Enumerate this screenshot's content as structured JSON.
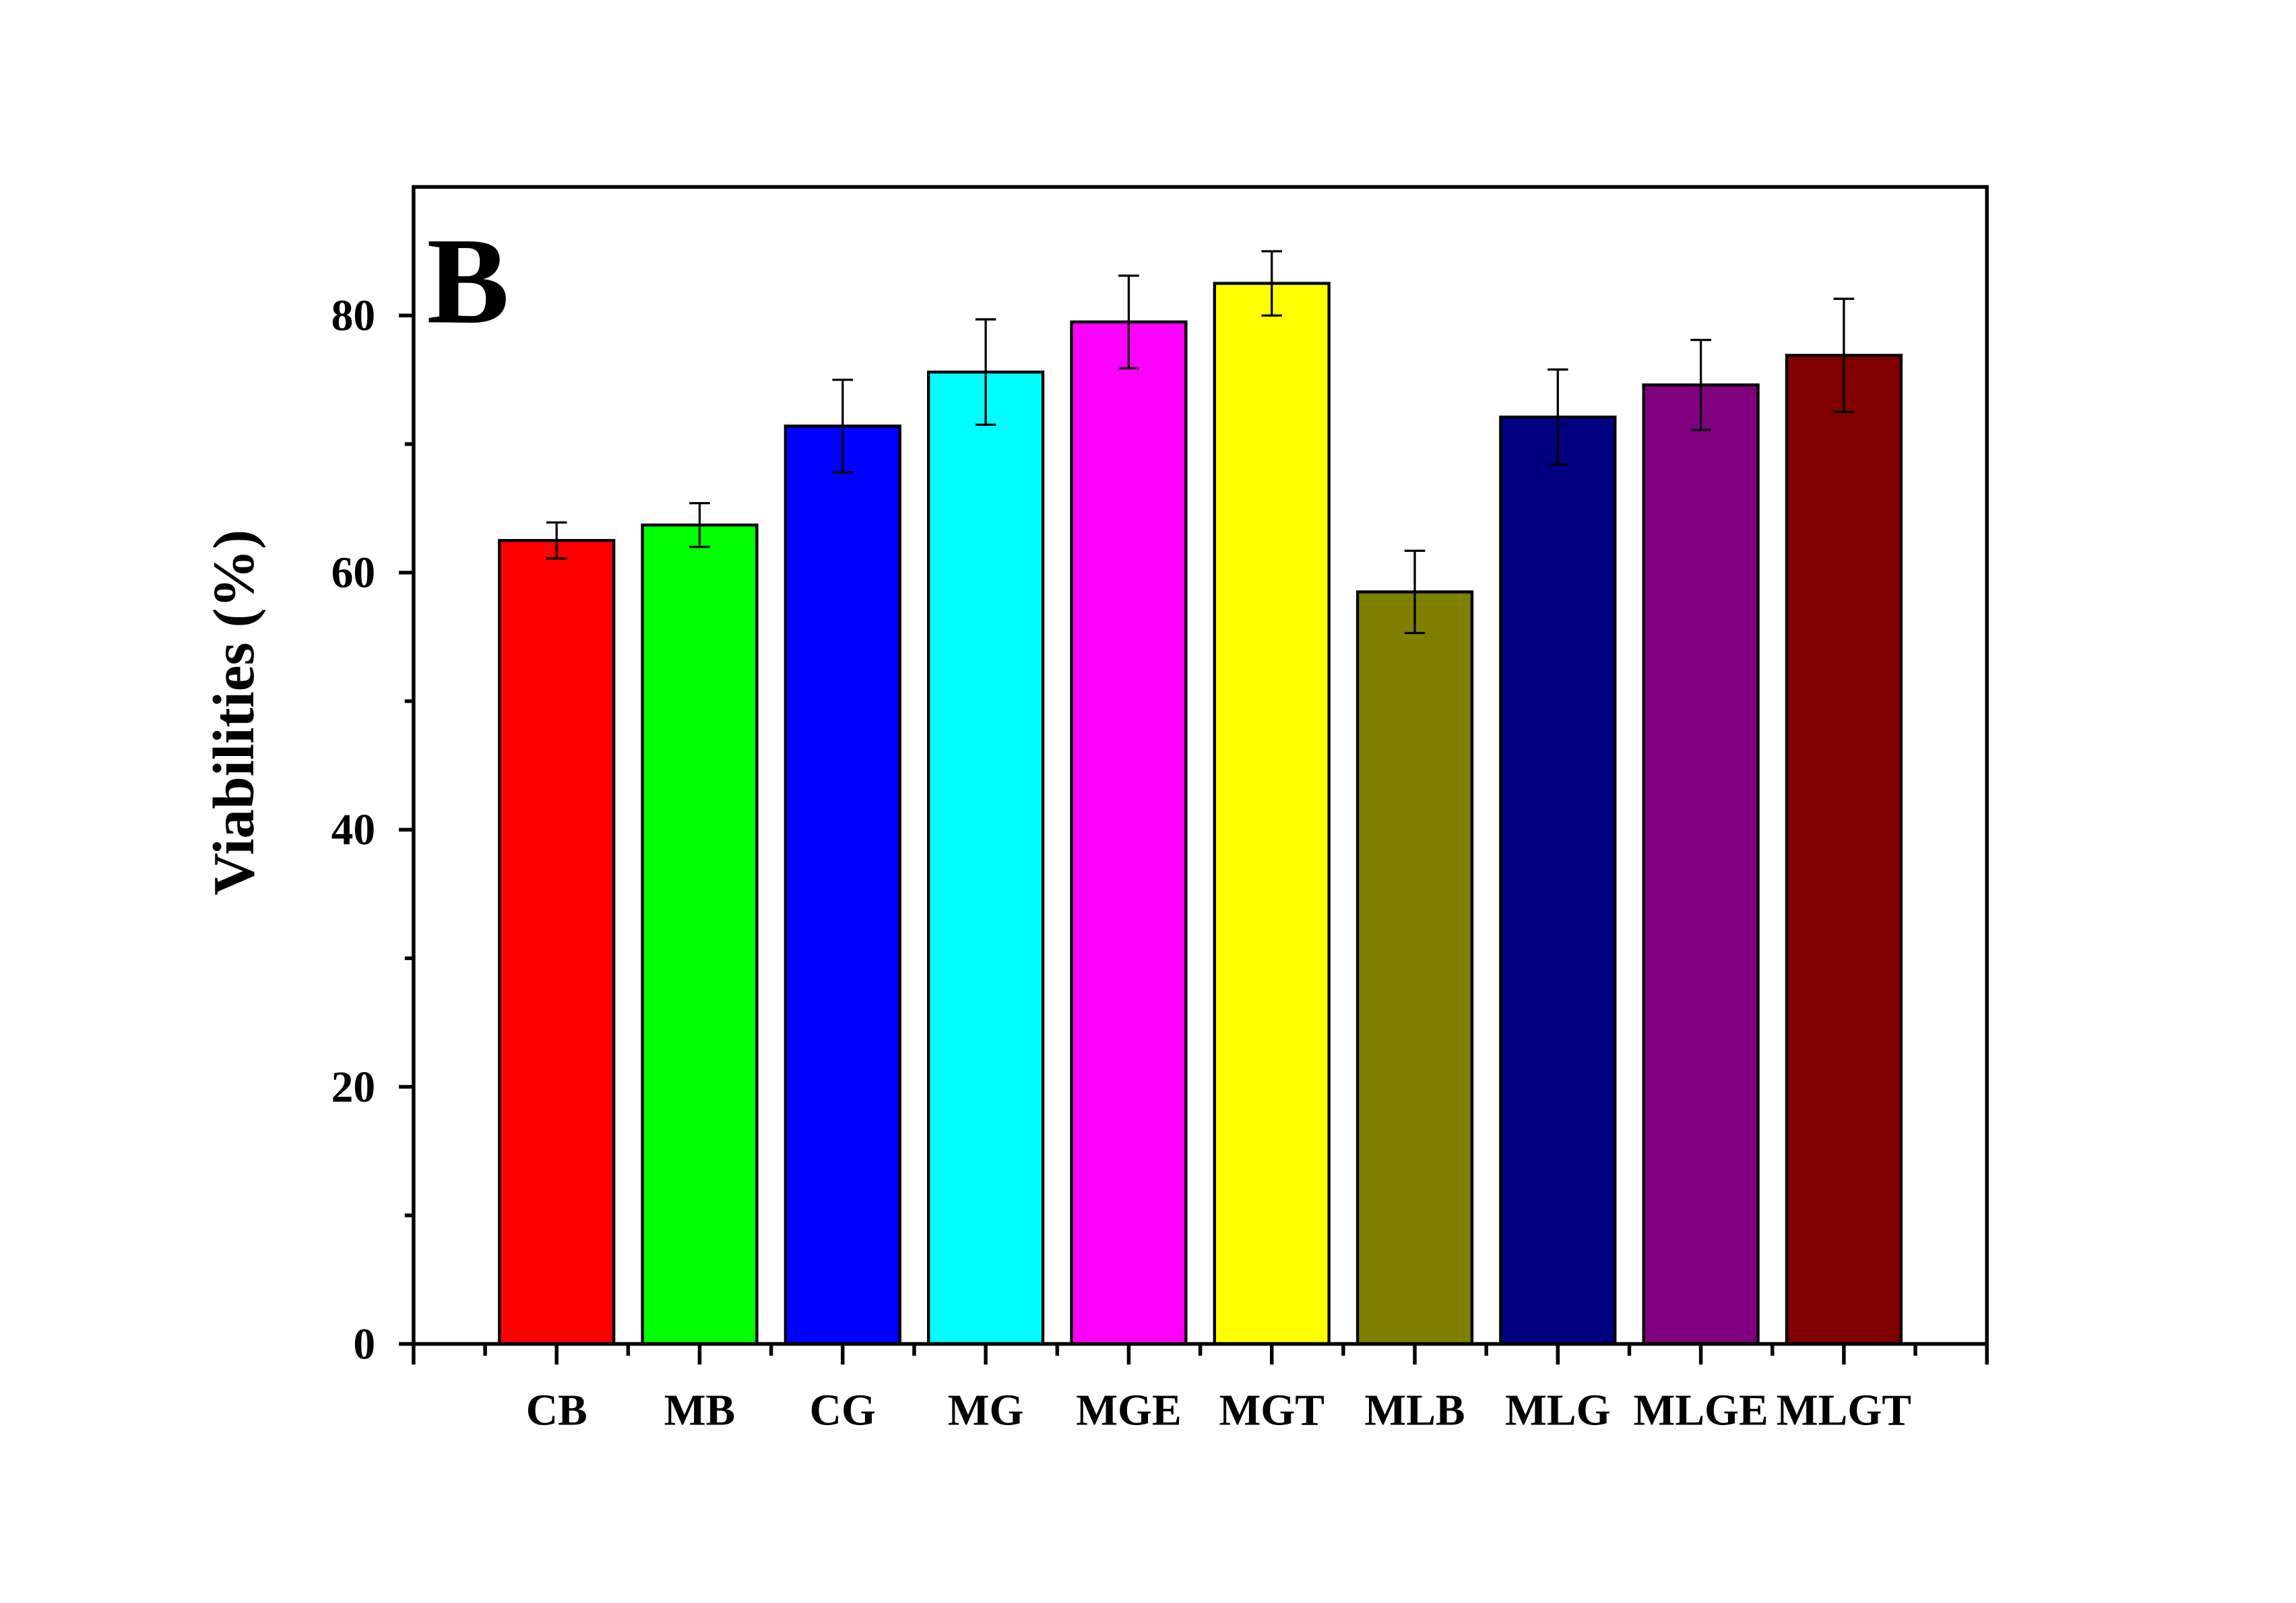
{
  "chart_data": {
    "type": "bar",
    "panel_label": "B",
    "title": "",
    "xlabel": "",
    "ylabel": "Viabilities (%)",
    "ylim": [
      0,
      90
    ],
    "yticks": [
      0,
      20,
      40,
      60,
      80
    ],
    "grid": false,
    "categories": [
      "CB",
      "MB",
      "CG",
      "MG",
      "MGE",
      "MGT",
      "MLB",
      "MLG",
      "MLGE",
      "MLGT"
    ],
    "values": [
      62.5,
      63.7,
      71.4,
      75.6,
      79.5,
      82.5,
      58.5,
      72.1,
      74.6,
      76.9
    ],
    "errors": [
      1.4,
      1.7,
      3.6,
      4.1,
      3.6,
      2.5,
      3.2,
      3.7,
      3.5,
      4.4
    ],
    "colors": [
      "#ff0000",
      "#00ff00",
      "#0000ff",
      "#00ffff",
      "#ff00ff",
      "#ffff00",
      "#808000",
      "#000080",
      "#800080",
      "#800000"
    ]
  }
}
